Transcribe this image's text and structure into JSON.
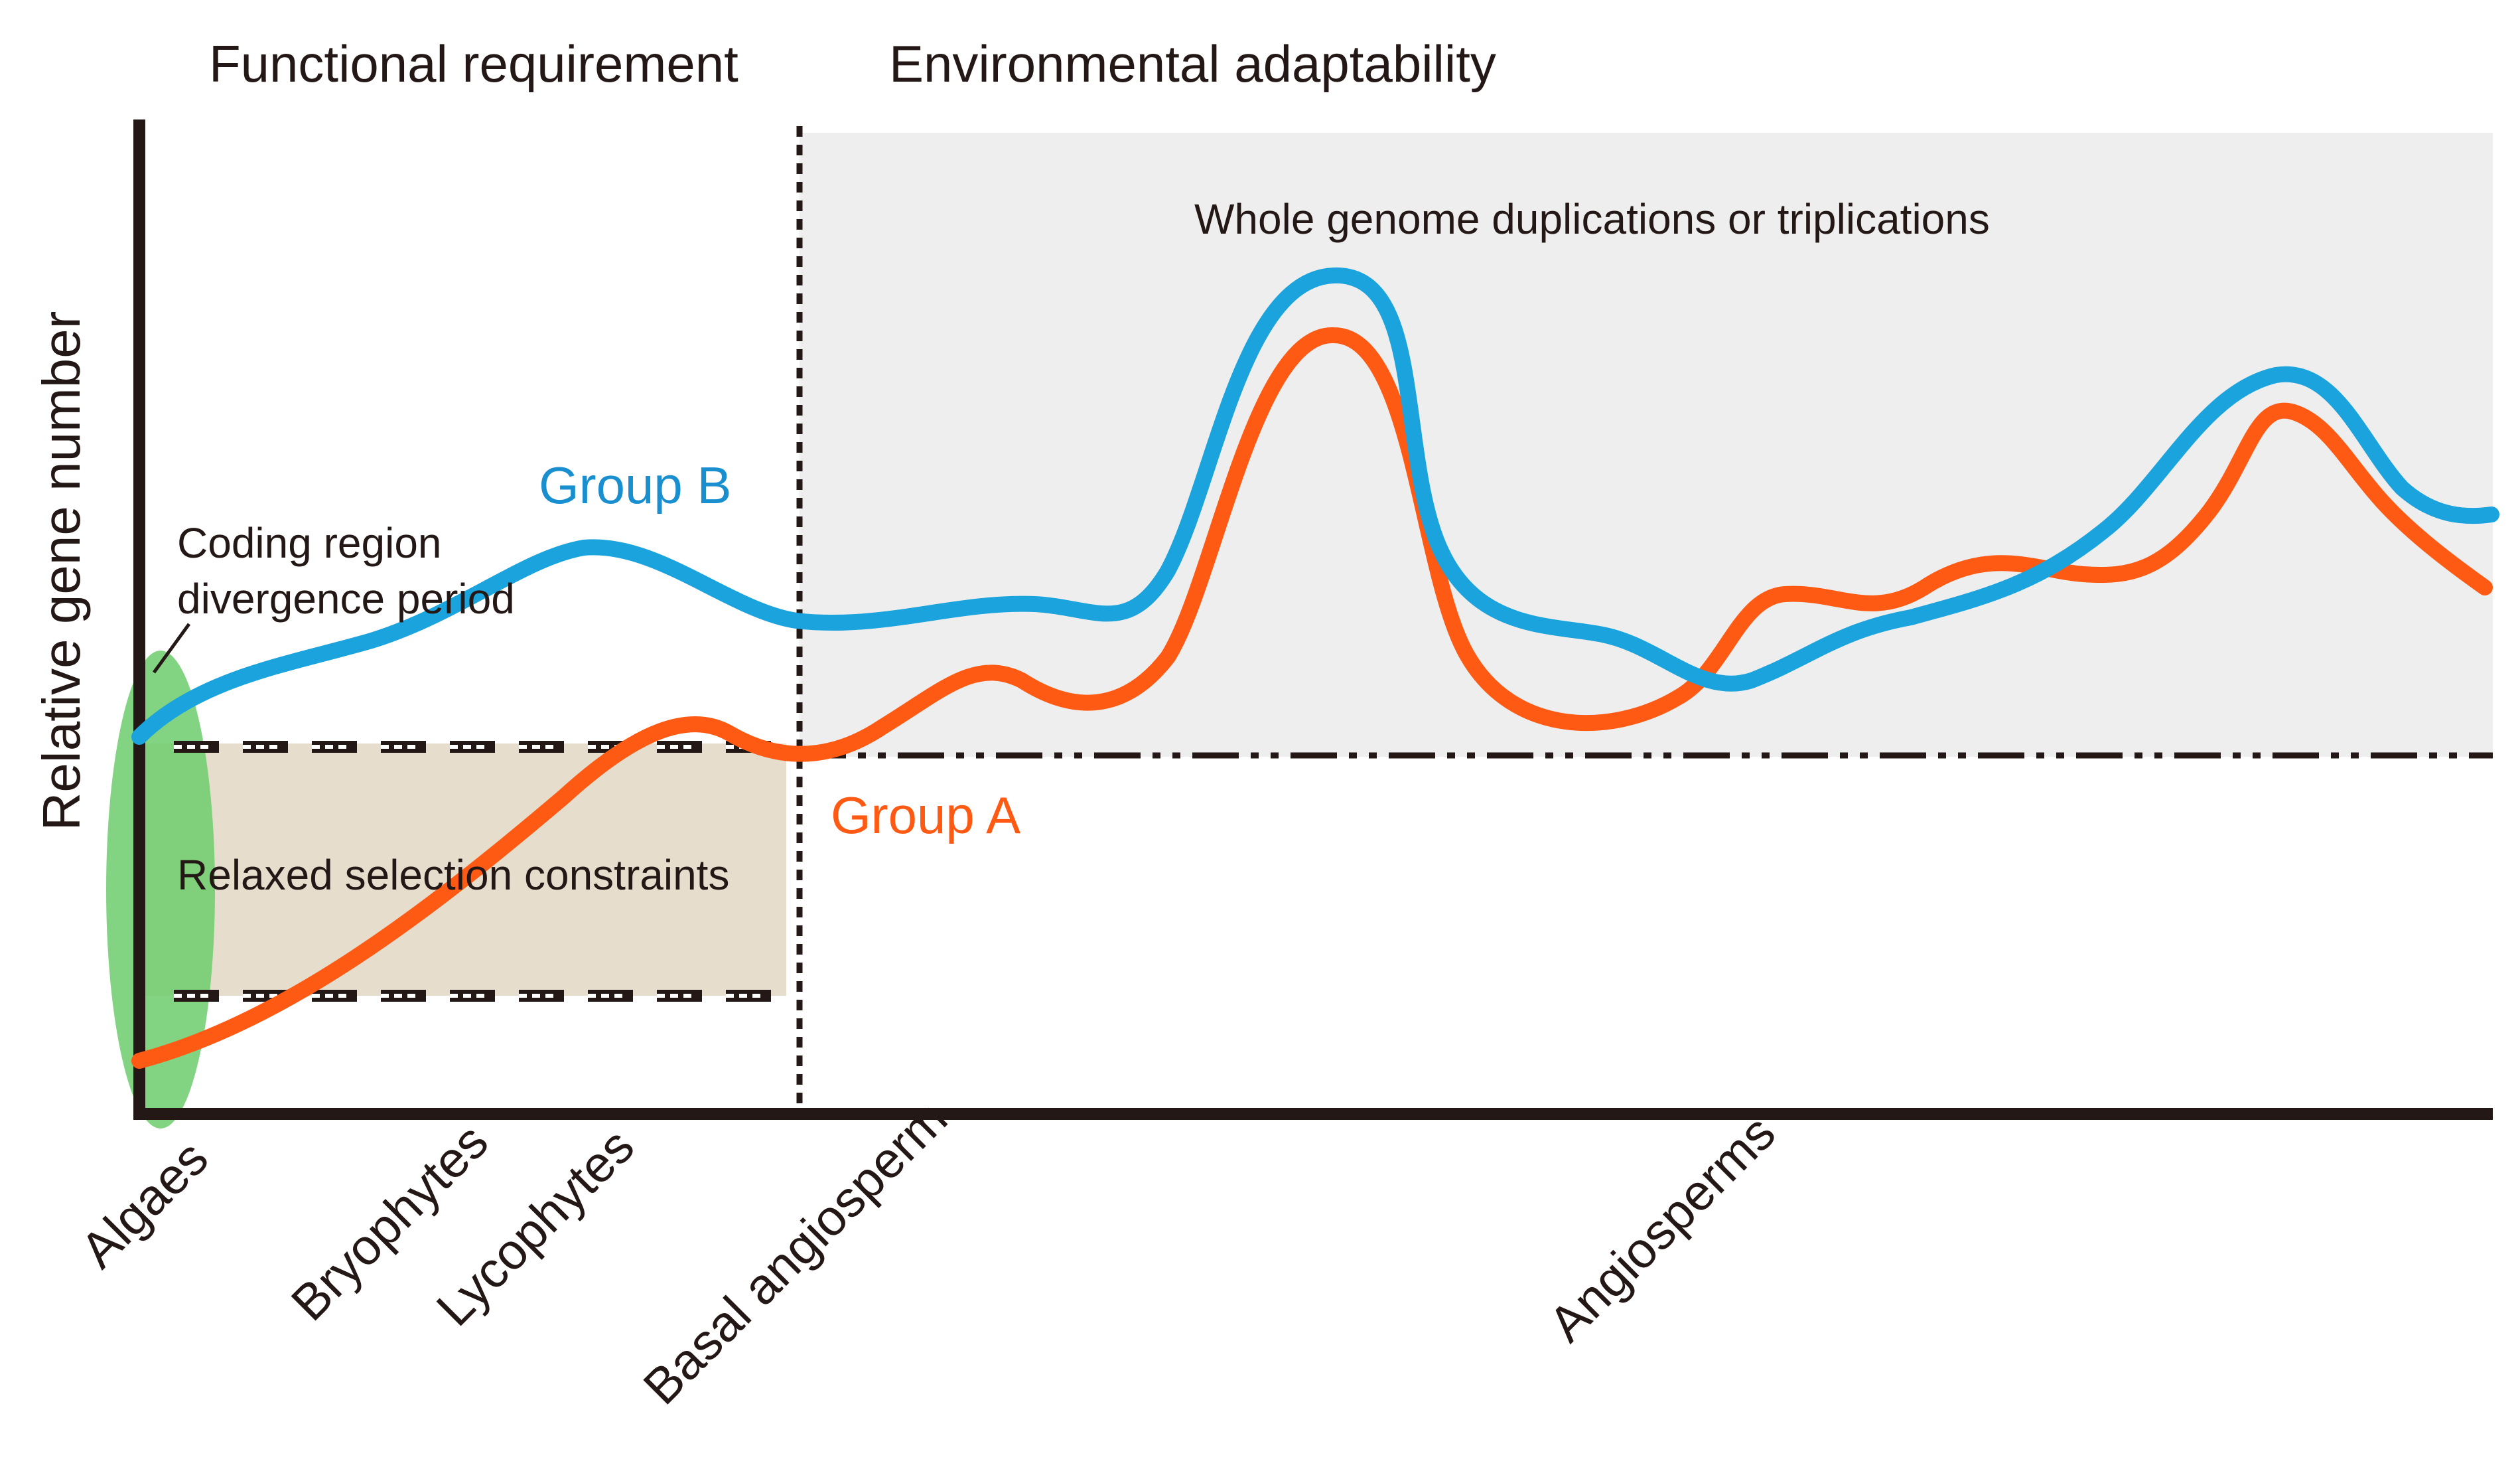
{
  "headers": {
    "left": "Functional requirement",
    "right": "Environmental adaptability"
  },
  "y_axis_label": "Relative gene number",
  "annotations": {
    "wgd": "Whole genome duplications or triplications",
    "coding_line1": "Coding region",
    "coding_line2": "divergence period",
    "relaxed": "Relaxed selection constraints"
  },
  "series": {
    "group_b": {
      "label": "Group B",
      "color": "#1aa3dd"
    },
    "group_a": {
      "label": "Group A",
      "color": "#ff5a14"
    }
  },
  "x_labels": {
    "algaes": "Algaes",
    "bryophytes": "Bryophytes",
    "lycophytes": "Lycophytes",
    "basal": "Basal angiosperm",
    "angiosperms": "Angiosperms"
  },
  "colors": {
    "wgd_region": "#eeeeee",
    "relaxed_region": "#e6ddcd",
    "algae_highlight": "#6ccc6c",
    "axis": "#231815"
  }
}
